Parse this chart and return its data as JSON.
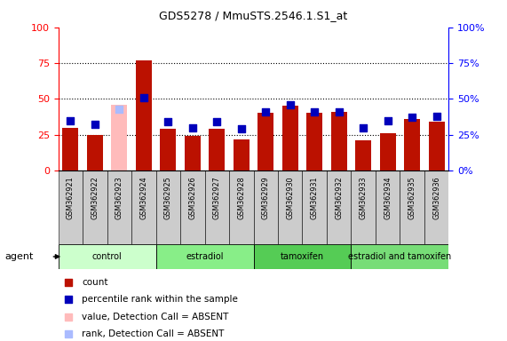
{
  "title": "GDS5278 / MmuSTS.2546.1.S1_at",
  "samples": [
    "GSM362921",
    "GSM362922",
    "GSM362923",
    "GSM362924",
    "GSM362925",
    "GSM362926",
    "GSM362927",
    "GSM362928",
    "GSM362929",
    "GSM362930",
    "GSM362931",
    "GSM362932",
    "GSM362933",
    "GSM362934",
    "GSM362935",
    "GSM362936"
  ],
  "count_values": [
    30,
    25,
    46,
    77,
    29,
    24,
    29,
    22,
    40,
    45,
    40,
    41,
    21,
    26,
    36,
    34
  ],
  "rank_values": [
    35,
    32,
    43,
    51,
    34,
    30,
    34,
    29,
    41,
    46,
    41,
    41,
    30,
    35,
    37,
    38
  ],
  "absent_flags": [
    false,
    false,
    true,
    false,
    false,
    false,
    false,
    false,
    false,
    false,
    false,
    false,
    false,
    false,
    false,
    false
  ],
  "groups": [
    {
      "label": "control",
      "indices": [
        0,
        1,
        2,
        3
      ],
      "color": "#ccffcc"
    },
    {
      "label": "estradiol",
      "indices": [
        4,
        5,
        6,
        7
      ],
      "color": "#88ee88"
    },
    {
      "label": "tamoxifen",
      "indices": [
        8,
        9,
        10,
        11
      ],
      "color": "#55cc55"
    },
    {
      "label": "estradiol and tamoxifen",
      "indices": [
        12,
        13,
        14,
        15
      ],
      "color": "#77dd77"
    }
  ],
  "count_color_normal": "#bb1100",
  "count_color_absent": "#ffbbbb",
  "rank_color_normal": "#0000bb",
  "rank_color_absent": "#aabbff",
  "ylim": [
    0,
    100
  ],
  "yticks": [
    0,
    25,
    50,
    75,
    100
  ],
  "gray_col": "#cccccc",
  "plot_bg": "#ffffff",
  "rank_marker_size": 32,
  "legend_items": [
    {
      "color": "#bb1100",
      "label": "count"
    },
    {
      "color": "#0000bb",
      "label": "percentile rank within the sample"
    },
    {
      "color": "#ffbbbb",
      "label": "value, Detection Call = ABSENT"
    },
    {
      "color": "#aabbff",
      "label": "rank, Detection Call = ABSENT"
    }
  ]
}
